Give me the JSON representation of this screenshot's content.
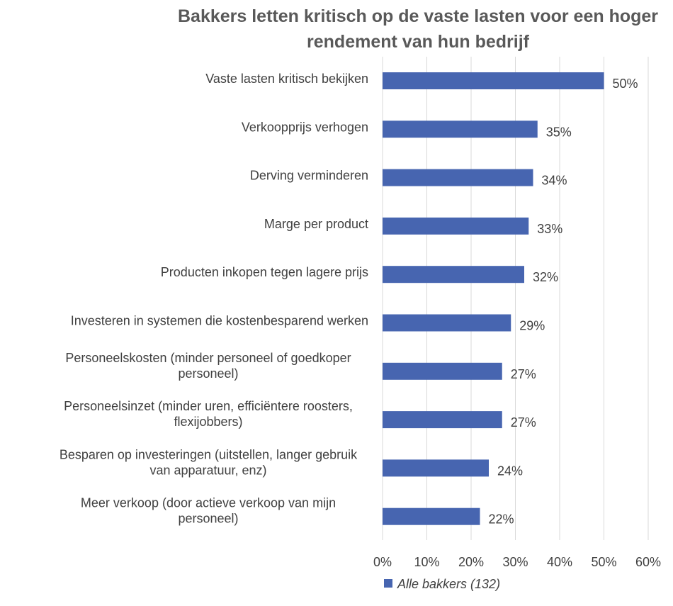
{
  "chart_data": {
    "type": "bar",
    "orientation": "horizontal",
    "title": "Bakkers letten kritisch op de vaste lasten voor een hoger rendement van hun bedrijf",
    "title_lines": [
      "Bakkers letten kritisch op de vaste lasten voor een hoger",
      "rendement van hun bedrijf"
    ],
    "categories": [
      [
        "Vaste lasten kritisch bekijken"
      ],
      [
        "Verkoopprijs verhogen"
      ],
      [
        "Derving verminderen"
      ],
      [
        "Marge per product"
      ],
      [
        "Producten inkopen tegen lagere prijs"
      ],
      [
        "Investeren in systemen die kostenbesparend werken"
      ],
      [
        "Personeelskosten (minder personeel of goedkoper",
        "personeel)"
      ],
      [
        "Personeelsinzet (minder uren, efficiëntere roosters,",
        "flexijobbers)"
      ],
      [
        "Besparen op investeringen (uitstellen, langer gebruik",
        "van apparatuur, enz)"
      ],
      [
        "Meer verkoop (door actieve verkoop van mijn",
        "personeel)"
      ]
    ],
    "series": [
      {
        "name": "Alle bakkers (132)",
        "color": "#4765b0",
        "values": [
          50,
          35,
          34,
          33,
          32,
          29,
          27,
          27,
          24,
          22
        ],
        "labels": [
          "50%",
          "35%",
          "34%",
          "33%",
          "32%",
          "29%",
          "27%",
          "27%",
          "24%",
          "22%"
        ]
      }
    ],
    "xlim": [
      0,
      60
    ],
    "xticks": [
      0,
      10,
      20,
      30,
      40,
      50,
      60
    ],
    "xtick_labels": [
      "0%",
      "10%",
      "20%",
      "30%",
      "40%",
      "50%",
      "60%"
    ],
    "grid": "vertical",
    "legend_position": "bottom"
  }
}
